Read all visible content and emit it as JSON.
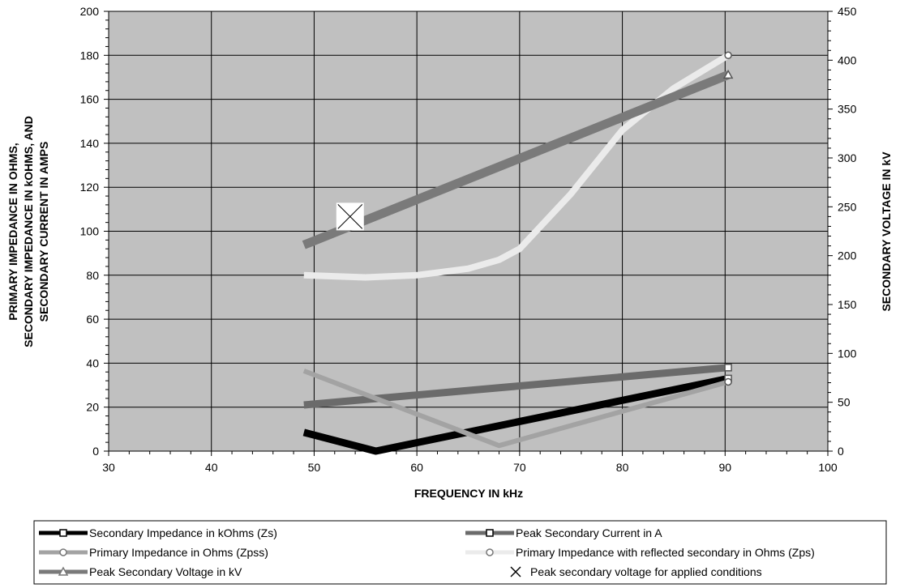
{
  "chart_data": {
    "type": "line",
    "xlabel": "FREQUENCY IN kHz",
    "ylabel_lines": [
      "PRIMARY IMPEDANCE IN OHMS,",
      "SECONDARY IMPEDANCE IN kOHMS, AND",
      "SECONDARY CURRENT IN AMPS"
    ],
    "ylabel_right": "SECONDARY VOLTAGE IN kV",
    "xlim": [
      30,
      100
    ],
    "ylim": [
      0,
      200
    ],
    "ylim_right": [
      0,
      450
    ],
    "x_ticks": [
      30,
      40,
      50,
      60,
      70,
      80,
      90,
      100
    ],
    "y_ticks": [
      0,
      20,
      40,
      60,
      80,
      100,
      120,
      140,
      160,
      180,
      200
    ],
    "y_ticks_right": [
      0,
      50,
      100,
      150,
      200,
      250,
      300,
      350,
      400,
      450
    ],
    "grid": true,
    "legend_position": "bottom",
    "series": [
      {
        "name": "Secondary Impedance in kOhms (Zs)",
        "axis": "left",
        "color": "#000000",
        "width": 9,
        "marker": "square",
        "x": [
          49,
          56,
          90.3
        ],
        "y": [
          8.5,
          0,
          33
        ]
      },
      {
        "name": "Peak Secondary Current in A",
        "axis": "left",
        "color": "#6b6b6b",
        "width": 9,
        "marker": "square",
        "x": [
          49,
          90.3
        ],
        "y": [
          21,
          38
        ]
      },
      {
        "name": "Primary Impedance in Ohms (Zpss)",
        "axis": "left",
        "color": "#a3a3a3",
        "width": 6,
        "marker": "circle",
        "x": [
          49,
          68,
          90.3
        ],
        "y": [
          36.5,
          2.5,
          31.5
        ]
      },
      {
        "name": "Primary Impedance with reflected secondary in Ohms (Zps)",
        "axis": "left",
        "color": "#ebebeb",
        "width": 8,
        "marker": "circle",
        "x": [
          49,
          55,
          60,
          65,
          68,
          70,
          75,
          80,
          85,
          90.3
        ],
        "y": [
          80,
          79,
          80,
          83,
          87,
          92,
          117,
          146,
          165,
          180
        ]
      },
      {
        "name": "Peak Secondary Voltage in kV",
        "axis": "right",
        "color": "#7a7a7a",
        "width": 11,
        "marker": "triangle",
        "x": [
          49,
          90.3
        ],
        "y": [
          211,
          385
        ]
      },
      {
        "name": "Peak secondary voltage for applied conditions",
        "axis": "right",
        "color": "#000000",
        "width": 0,
        "marker": "x-box",
        "x": [
          53.5
        ],
        "y": [
          240
        ]
      }
    ]
  }
}
